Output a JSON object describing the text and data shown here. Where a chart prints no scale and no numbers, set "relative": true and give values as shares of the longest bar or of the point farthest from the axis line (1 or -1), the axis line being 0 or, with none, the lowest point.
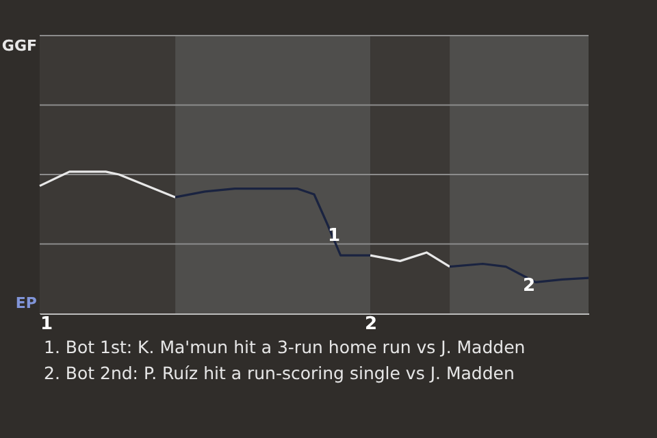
{
  "chart_data": {
    "type": "line",
    "relative": true,
    "xlim": [
      1,
      2.66
    ],
    "xticks": [
      1,
      2
    ],
    "ref_lines": [
      {
        "axis": "y",
        "value": 0.49,
        "color": "#8c8c8c"
      },
      {
        "axis": "y",
        "value": 0.98,
        "color": "#8c8c8c"
      },
      {
        "axis": "y",
        "value": 1.47,
        "color": "#8c8c8c"
      },
      {
        "axis": "y",
        "value": 1.96,
        "color": "#8c8c8c"
      }
    ],
    "bands": [
      {
        "axis": "x",
        "from": 1,
        "to": 1.41,
        "color": "#3c3936"
      },
      {
        "axis": "x",
        "from": 1.41,
        "to": 2,
        "color": "#4f4e4c"
      },
      {
        "axis": "x",
        "from": 2,
        "to": 2.24,
        "color": "#3c3936"
      },
      {
        "axis": "x",
        "from": 2.24,
        "to": 2.66,
        "color": "#4f4e4c"
      }
    ],
    "series": [
      {
        "color": "#e8e8e8",
        "x": [
          1,
          1.09,
          1.2,
          1.24,
          1.41
        ],
        "values": [
          0.9,
          1,
          1,
          0.98,
          0.82
        ]
      },
      {
        "color": "#1a2340",
        "x": [
          1.41,
          1.5,
          1.59,
          1.67,
          1.78,
          1.83,
          1.87,
          1.91,
          2
        ],
        "values": [
          0.82,
          0.86,
          0.88,
          0.88,
          0.88,
          0.84,
          0.63,
          0.41,
          0.41
        ]
      },
      {
        "color": "#e8e8e8",
        "x": [
          2,
          2.09,
          2.17,
          2.24
        ],
        "values": [
          0.41,
          0.37,
          0.43,
          0.33
        ]
      },
      {
        "color": "#1a2340",
        "x": [
          2.24,
          2.34,
          2.41,
          2.5,
          2.58,
          2.66
        ],
        "values": [
          0.33,
          0.35,
          0.33,
          0.22,
          0.24,
          0.25
        ]
      }
    ],
    "annotations": [
      "GGF",
      "EP",
      {
        "text": "1",
        "x": 1.89,
        "y": 0.55
      },
      {
        "text": "2",
        "x": 2.48,
        "y": 0.2
      },
      "1. Bot 1st: K. Ma'mun hit a 3-run home run vs J. Madden",
      "2. Bot 2nd: P. Ruíz hit a run-scoring single vs J. Madden"
    ]
  }
}
